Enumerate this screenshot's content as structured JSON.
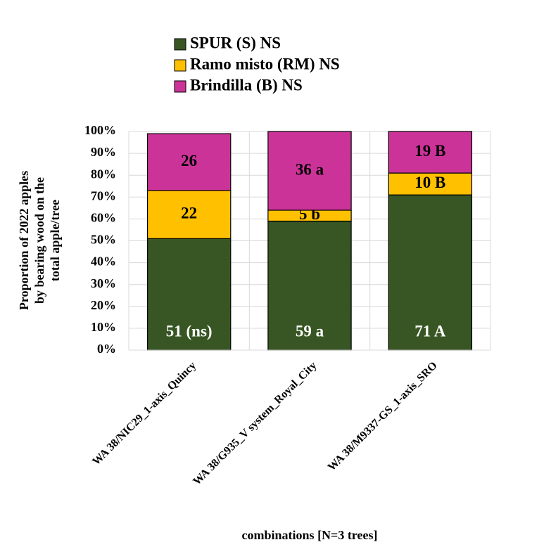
{
  "chart_data": {
    "type": "stacked_bar",
    "categories": [
      "WA 38/NIC29_1-axis_Quincy",
      "WA 38/G935_V system_Royal_City",
      "WA 38/M9337-GS_1-axis_SRO"
    ],
    "series": [
      {
        "name": "SPUR (S) NS",
        "color": "#375623",
        "label_color": "#ffffff",
        "values": [
          51,
          59,
          71
        ],
        "value_labels": [
          "51 (ns)",
          "59 a",
          "71 A"
        ]
      },
      {
        "name": "Ramo misto (RM) NS",
        "color": "#ffc000",
        "label_color": "#000000",
        "values": [
          22,
          5,
          10
        ],
        "value_labels": [
          "22",
          "5 b",
          "10 B"
        ]
      },
      {
        "name": "Brindilla (B) NS",
        "color": "#cc3399",
        "label_color": "#000000",
        "values": [
          26,
          36,
          19
        ],
        "value_labels": [
          "26",
          "36 a",
          "19 B"
        ]
      }
    ],
    "ylabel": [
      "Proportion of 2022 apples",
      "by bearing wood on the",
      "total apple/tree"
    ],
    "xlabel": "combinations [N=3 trees]",
    "ylim": [
      0,
      100
    ],
    "yticks": [
      {
        "value": 0,
        "label": "0%"
      },
      {
        "value": 10,
        "label": "10%"
      },
      {
        "value": 20,
        "label": "20%"
      },
      {
        "value": 30,
        "label": "30%"
      },
      {
        "value": 40,
        "label": "40%"
      },
      {
        "value": 50,
        "label": "50%"
      },
      {
        "value": 60,
        "label": "60%"
      },
      {
        "value": 70,
        "label": "70%"
      },
      {
        "value": 80,
        "label": "80%"
      },
      {
        "value": 90,
        "label": "90%"
      },
      {
        "value": 100,
        "label": "100%"
      }
    ],
    "grid": true,
    "legend": "top"
  }
}
